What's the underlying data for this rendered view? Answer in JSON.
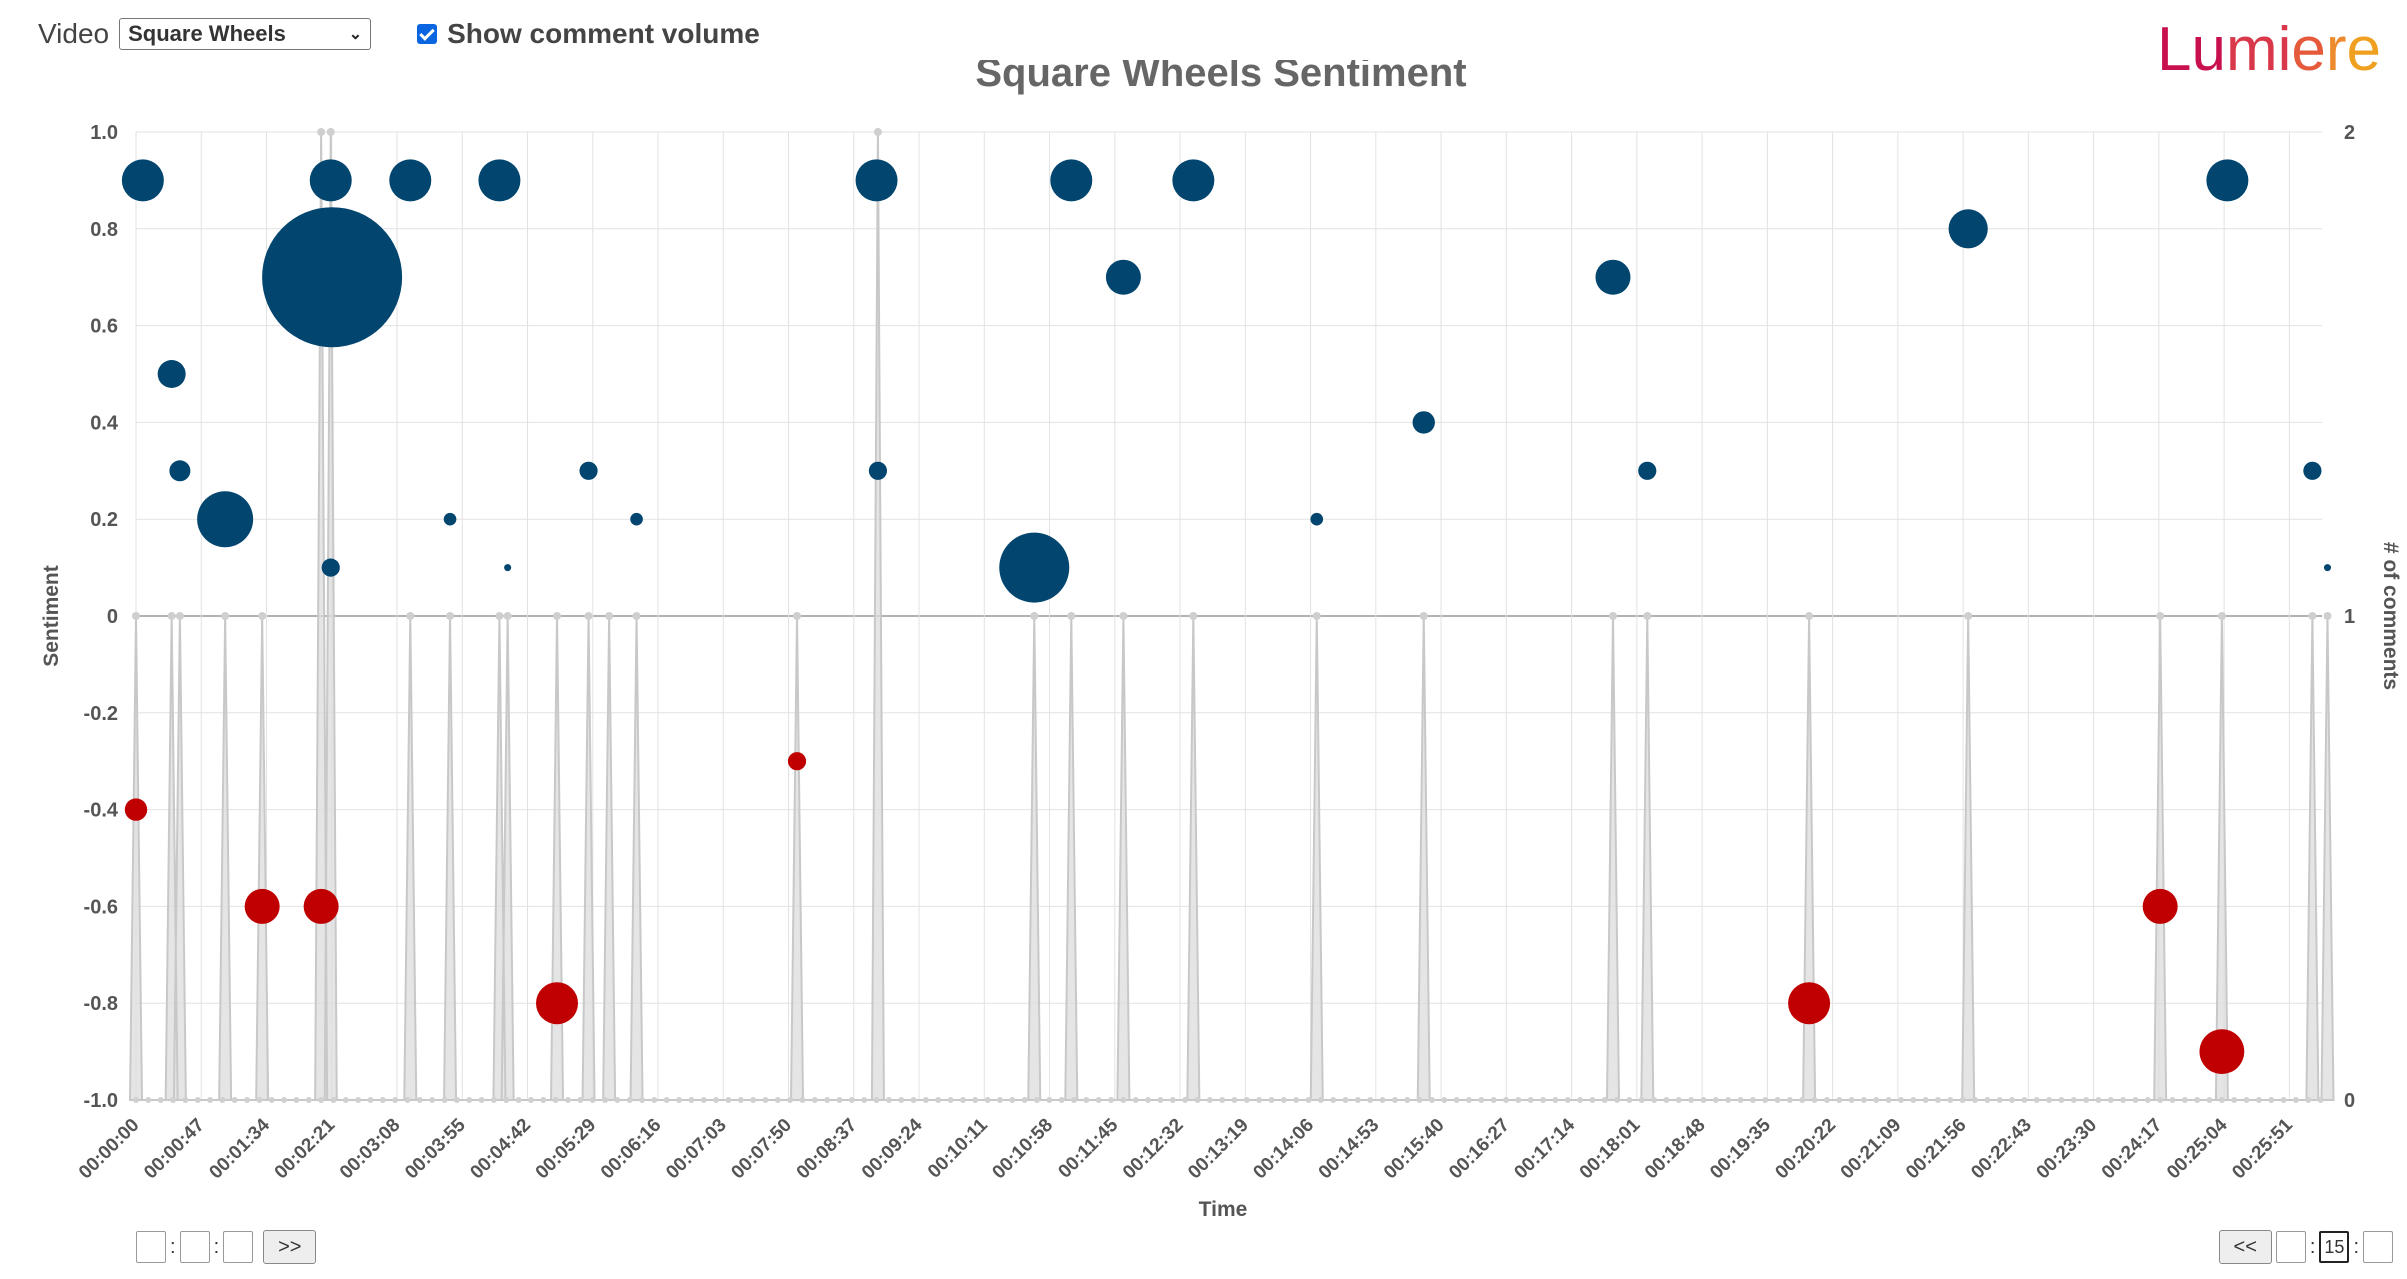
{
  "header": {
    "video_label": "Video",
    "video_selected": "Square Wheels",
    "show_volume_label": "Show comment volume",
    "show_volume_checked": true
  },
  "logo": {
    "text": "Lumiere"
  },
  "controls": {
    "forward_label": ">>",
    "back_label": "<<",
    "time_field_value": "15"
  },
  "colors": {
    "positive": "#02456f",
    "negative": "#c00000",
    "volume_fill": "#dcdcdc",
    "volume_line": "#c8c8c8"
  },
  "chart_data": {
    "type": "scatter",
    "title": "Square Wheels Sentiment",
    "xlabel": "Time",
    "ylabel": "Sentiment",
    "y2label": "# of comments",
    "ylim": [
      -1.0,
      1.0
    ],
    "y2lim": [
      0,
      2
    ],
    "xlim_seconds": [
      0,
      1594
    ],
    "yticks": [
      "1.0",
      "0.8",
      "0.6",
      "0.4",
      "0.2",
      "0",
      "-0.2",
      "-0.4",
      "-0.6",
      "-0.8",
      "-1.0"
    ],
    "y2ticks": [
      "2",
      "1",
      "0"
    ],
    "xticks": [
      "00:00:00",
      "00:00:47",
      "00:01:34",
      "00:02:21",
      "00:03:08",
      "00:03:55",
      "00:04:42",
      "00:05:29",
      "00:06:16",
      "00:07:03",
      "00:07:50",
      "00:08:37",
      "00:09:24",
      "00:10:11",
      "00:10:58",
      "00:11:45",
      "00:12:32",
      "00:13:19",
      "00:14:06",
      "00:14:53",
      "00:15:40",
      "00:16:27",
      "00:17:14",
      "00:18:01",
      "00:18:48",
      "00:19:35",
      "00:20:22",
      "00:21:09",
      "00:21:56",
      "00:22:43",
      "00:23:30",
      "00:24:17",
      "00:25:04",
      "00:25:51"
    ],
    "series": [
      {
        "kind": "sentiment",
        "points": [
          {
            "t": 5,
            "s": 0.9,
            "size": 3
          },
          {
            "t": 26,
            "s": 0.5,
            "size": 2
          },
          {
            "t": 32,
            "s": 0.3,
            "size": 1.5
          },
          {
            "t": 65,
            "s": 0.2,
            "size": 4
          },
          {
            "t": 142,
            "s": 0.1,
            "size": 1.3
          },
          {
            "t": 142,
            "s": 0.9,
            "size": 3
          },
          {
            "t": 143,
            "s": 0.7,
            "size": 10
          },
          {
            "t": 200,
            "s": 0.9,
            "size": 3
          },
          {
            "t": 229,
            "s": 0.2,
            "size": 0.9
          },
          {
            "t": 265,
            "s": 0.9,
            "size": 3
          },
          {
            "t": 271,
            "s": 0.1,
            "size": 0.5
          },
          {
            "t": 330,
            "s": 0.3,
            "size": 1.3
          },
          {
            "t": 365,
            "s": 0.2,
            "size": 0.9
          },
          {
            "t": 540,
            "s": 0.9,
            "size": 3
          },
          {
            "t": 541,
            "s": 0.3,
            "size": 1.3
          },
          {
            "t": 655,
            "s": 0.1,
            "size": 5
          },
          {
            "t": 682,
            "s": 0.9,
            "size": 3
          },
          {
            "t": 720,
            "s": 0.7,
            "size": 2.5
          },
          {
            "t": 771,
            "s": 0.9,
            "size": 3
          },
          {
            "t": 861,
            "s": 0.2,
            "size": 0.9
          },
          {
            "t": 939,
            "s": 0.4,
            "size": 1.6
          },
          {
            "t": 1077,
            "s": 0.7,
            "size": 2.5
          },
          {
            "t": 1102,
            "s": 0.3,
            "size": 1.3
          },
          {
            "t": 1336,
            "s": 0.8,
            "size": 2.8
          },
          {
            "t": 1525,
            "s": 0.9,
            "size": 3
          },
          {
            "t": 1587,
            "s": 0.3,
            "size": 1.3
          },
          {
            "t": 1598,
            "s": 0.1,
            "size": 0.5
          },
          {
            "t": 0,
            "s": -0.4,
            "size": 1.6
          },
          {
            "t": 92,
            "s": -0.6,
            "size": 2.5
          },
          {
            "t": 135,
            "s": -0.6,
            "size": 2.5
          },
          {
            "t": 307,
            "s": -0.8,
            "size": 3
          },
          {
            "t": 482,
            "s": -0.3,
            "size": 1.3
          },
          {
            "t": 1220,
            "s": -0.8,
            "size": 3
          },
          {
            "t": 1476,
            "s": -0.6,
            "size": 2.5
          },
          {
            "t": 1521,
            "s": -0.9,
            "size": 3.2
          }
        ]
      },
      {
        "kind": "volume",
        "spikes": [
          {
            "t": 0,
            "c": 1
          },
          {
            "t": 26,
            "c": 1
          },
          {
            "t": 32,
            "c": 1
          },
          {
            "t": 65,
            "c": 1
          },
          {
            "t": 92,
            "c": 1
          },
          {
            "t": 135,
            "c": 2
          },
          {
            "t": 142,
            "c": 2
          },
          {
            "t": 200,
            "c": 1
          },
          {
            "t": 229,
            "c": 1
          },
          {
            "t": 265,
            "c": 1
          },
          {
            "t": 271,
            "c": 1
          },
          {
            "t": 307,
            "c": 1
          },
          {
            "t": 330,
            "c": 1
          },
          {
            "t": 345,
            "c": 1
          },
          {
            "t": 365,
            "c": 1
          },
          {
            "t": 482,
            "c": 1
          },
          {
            "t": 541,
            "c": 2
          },
          {
            "t": 655,
            "c": 1
          },
          {
            "t": 682,
            "c": 1
          },
          {
            "t": 720,
            "c": 1
          },
          {
            "t": 771,
            "c": 1
          },
          {
            "t": 861,
            "c": 1
          },
          {
            "t": 939,
            "c": 1
          },
          {
            "t": 1077,
            "c": 1
          },
          {
            "t": 1102,
            "c": 1
          },
          {
            "t": 1220,
            "c": 1
          },
          {
            "t": 1336,
            "c": 1
          },
          {
            "t": 1476,
            "c": 1
          },
          {
            "t": 1521,
            "c": 1
          },
          {
            "t": 1587,
            "c": 1
          },
          {
            "t": 1598,
            "c": 1
          }
        ]
      }
    ]
  }
}
